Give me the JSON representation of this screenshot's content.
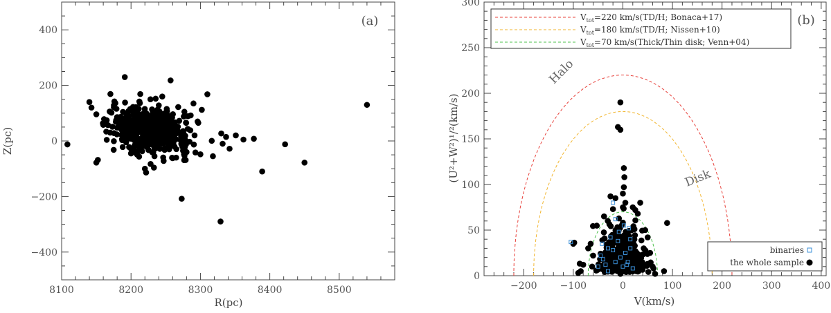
{
  "chart_data": [
    {
      "type": "scatter",
      "panel_label": "(a)",
      "xlabel": "R(pc)",
      "ylabel": "Z(pc)",
      "xlim": [
        8100,
        8580
      ],
      "ylim": [
        -500,
        500
      ],
      "xticks": [
        8100,
        8200,
        8300,
        8400,
        8500
      ],
      "yticks": [
        -400,
        -200,
        0,
        200,
        400
      ],
      "xtick_labels": [
        "8100",
        "8200",
        "8300",
        "8400",
        "8500"
      ],
      "ytick_labels": [
        "−400",
        "−200",
        "0",
        "200",
        "400"
      ],
      "grid": false,
      "marker_color": "#000000",
      "series": [
        {
          "values_note": "",
          "x": [
            8140,
            8150,
            8191,
            8257,
            8310,
            8330,
            8351,
            8362,
            8377,
            8389,
            8422,
            8450,
            8540,
            8273,
            8329,
            8150,
            8143,
            8160,
            8170,
            8180,
            8240,
            8250,
            8290,
            8302,
            8280,
            8300,
            8318,
            8332,
            8342,
            8260,
            8247,
            8233,
            8220,
            8200,
            8175,
            8165,
            8188,
            8205,
            8212,
            8228,
            8238,
            8268,
            8276,
            8286,
            8296,
            8275,
            8265,
            8255,
            8245
          ],
          "y": [
            140,
            -78,
            230,
            218,
            168,
            27,
            20,
            5,
            8,
            -110,
            -12,
            -78,
            130,
            -208,
            -290,
            96,
            120,
            58,
            30,
            48,
            128,
            102,
            135,
            112,
            -40,
            -48,
            -55,
            -10,
            -28,
            -62,
            -72,
            -96,
            -100,
            -45,
            -32,
            4,
            -22,
            -40,
            142,
            150,
            112,
            122,
            88,
            92,
            70,
            -35,
            -60,
            -30,
            160
          ]
        }
      ]
    },
    {
      "type": "scatter",
      "panel_label": "(b)",
      "xlabel": "V(km/s)",
      "ylabel": "(U²+W²)¹/²(km/s)",
      "xlim": [
        -280,
        410
      ],
      "ylim": [
        0,
        300
      ],
      "xticks": [
        -200,
        -100,
        0,
        100,
        200,
        300,
        400
      ],
      "yticks": [
        0,
        50,
        100,
        150,
        200,
        250,
        300
      ],
      "xtick_labels": [
        "−200",
        "−100",
        "0",
        "100",
        "200",
        "300",
        "400"
      ],
      "ytick_labels": [
        "0",
        "50",
        "100",
        "150",
        "200",
        "250",
        "300"
      ],
      "grid": false,
      "curves": [
        {
          "name": "V_tot=220 km/s(TD/H; Bonaca+17)",
          "radius": 220,
          "color": "#e8403a"
        },
        {
          "name": "V_tot=180 km/s(TD/H; Nissen+10)",
          "radius": 180,
          "color": "#f2b630"
        },
        {
          "name": "V_tot=70 km/s(Thick/Thin disk; Venn+04)",
          "radius": 70,
          "color": "#4cc04c"
        }
      ],
      "legend_top": [
        {
          "sub": "tot",
          "rest": "=220 km/s(TD/H; Bonaca+17)",
          "color": "#e8403a"
        },
        {
          "sub": "tot",
          "rest": "=180 km/s(TD/H; Nissen+10)",
          "color": "#f2b630"
        },
        {
          "sub": "tot",
          "rest": "=70 km/s(Thick/Thin disk; Venn+04)",
          "color": "#4cc04c"
        }
      ],
      "legend_bottom": [
        {
          "label": "binaries",
          "marker": "open-square",
          "color": "#3a8fd8"
        },
        {
          "label": "the  whole sample",
          "marker": "filled-circle",
          "color": "#000000"
        }
      ],
      "annotations": [
        "Halo",
        "Disk"
      ],
      "series": [
        {
          "name": "the  whole sample",
          "x": [
            -5,
            -10,
            -5,
            2,
            3,
            2,
            0,
            -15,
            5,
            -25,
            -20,
            0,
            20,
            25,
            30,
            35,
            50,
            55,
            60,
            83,
            65,
            -5,
            -60,
            -65,
            -70,
            -80,
            -85,
            -90,
            -100,
            -62,
            -48,
            -38,
            42,
            45
          ],
          "y": [
            190,
            163,
            160,
            118,
            108,
            97,
            90,
            85,
            80,
            87,
            73,
            75,
            75,
            72,
            68,
            80,
            42,
            25,
            10,
            5,
            2,
            2,
            22,
            35,
            30,
            12,
            5,
            3,
            35,
            10,
            8,
            65,
            30,
            50
          ]
        },
        {
          "name": "binaries",
          "x": [
            -105,
            -50,
            -45,
            -40,
            -35,
            -30,
            -25,
            -20,
            -15,
            -10,
            -5,
            0,
            5,
            10,
            15,
            20,
            -20,
            -30,
            15,
            2,
            -8,
            8,
            12,
            -42,
            -15
          ],
          "y": [
            37,
            10,
            22,
            18,
            12,
            30,
            42,
            28,
            15,
            38,
            20,
            10,
            25,
            15,
            30,
            8,
            80,
            5,
            40,
            55,
            48,
            12,
            52,
            35,
            62
          ]
        }
      ]
    }
  ]
}
